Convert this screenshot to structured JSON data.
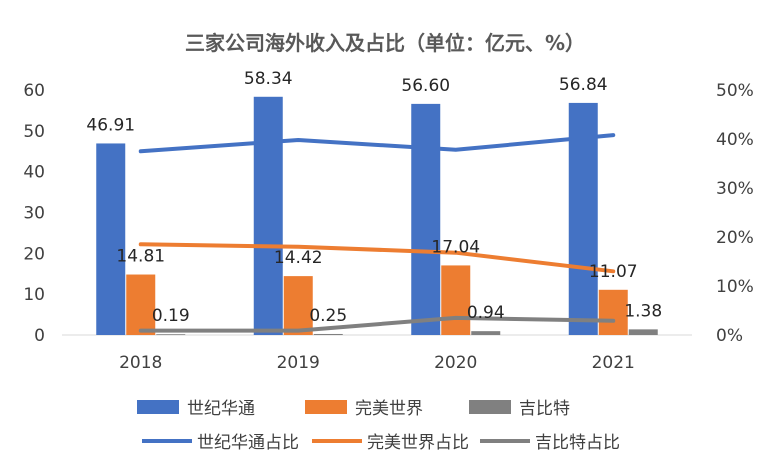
{
  "chart_data": {
    "type": "bar",
    "title": "三家公司海外收入及占比（单位：亿元、%）",
    "categories": [
      "2018",
      "2019",
      "2020",
      "2021"
    ],
    "bar_series": [
      {
        "name": "世纪华通",
        "values": [
          46.91,
          58.34,
          56.6,
          56.84
        ],
        "labels": [
          "46.91",
          "58.34",
          "56.60",
          "56.84"
        ],
        "color": "#4472C4"
      },
      {
        "name": "完美世界",
        "values": [
          14.81,
          14.42,
          17.04,
          11.07
        ],
        "labels": [
          "14.81",
          "14.42",
          "17.04",
          "11.07"
        ],
        "color": "#ED7D31"
      },
      {
        "name": "吉比特",
        "values": [
          0.19,
          0.25,
          0.94,
          1.38
        ],
        "labels": [
          "0.19",
          "0.25",
          "0.94",
          "1.38"
        ],
        "color": "#808080"
      }
    ],
    "line_series": [
      {
        "name": "世纪华通占比",
        "values": [
          37.5,
          39.8,
          37.8,
          40.8
        ],
        "color": "#4472C4"
      },
      {
        "name": "完美世界占比",
        "values": [
          18.5,
          18.0,
          16.8,
          13.0
        ],
        "color": "#ED7D31"
      },
      {
        "name": "吉比特占比",
        "values": [
          0.9,
          0.9,
          3.5,
          2.9
        ],
        "color": "#808080"
      }
    ],
    "y_left": {
      "min": 0,
      "max": 60,
      "ticks": [
        "0",
        "10",
        "20",
        "30",
        "40",
        "50",
        "60"
      ]
    },
    "y_right": {
      "min": 0,
      "max": 50,
      "ticks": [
        "0%",
        "10%",
        "20%",
        "30%",
        "40%",
        "50%"
      ]
    },
    "grid": false,
    "legend_position": "bottom"
  }
}
